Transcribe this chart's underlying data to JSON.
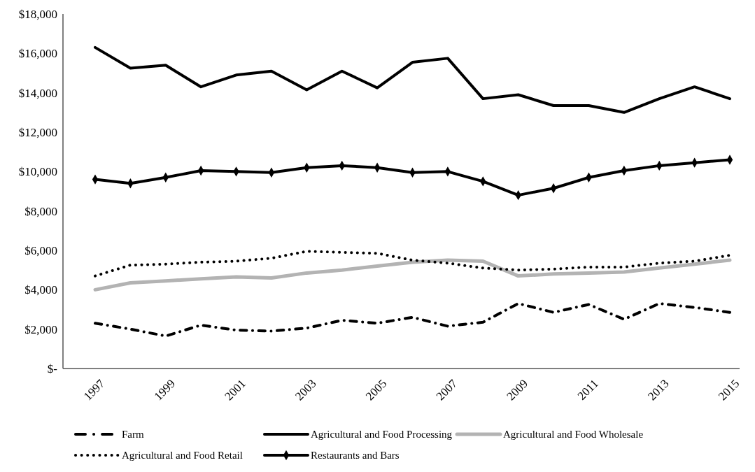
{
  "chart_data": {
    "type": "line",
    "categories": [
      "1997",
      null,
      "1999",
      null,
      "2001",
      null,
      "2003",
      null,
      "2005",
      null,
      "2007",
      null,
      "2009",
      null,
      "2011",
      null,
      "2013",
      null,
      "2015"
    ],
    "ylim": [
      0,
      18000
    ],
    "yticks": [
      {
        "value": 0,
        "label": "$-"
      },
      {
        "value": 2000,
        "label": "$2,000"
      },
      {
        "value": 4000,
        "label": "$4,000"
      },
      {
        "value": 6000,
        "label": "$6,000"
      },
      {
        "value": 8000,
        "label": "$8,000"
      },
      {
        "value": 10000,
        "label": "$10,000"
      },
      {
        "value": 12000,
        "label": "$12,000"
      },
      {
        "value": 14000,
        "label": "$14,000"
      },
      {
        "value": 16000,
        "label": "$16,000"
      },
      {
        "value": 18000,
        "label": "$18,000"
      }
    ],
    "grid": false,
    "legend": "bottom",
    "series": [
      {
        "name": "Farm",
        "color": "#000000",
        "line_style": "dashdot",
        "marker": "none",
        "values": [
          2300,
          2000,
          1650,
          2200,
          1950,
          1900,
          2050,
          2450,
          2300,
          2600,
          2150,
          2350,
          3300,
          2850,
          3250,
          2500,
          3300,
          3100,
          2850
        ]
      },
      {
        "name": "Agricultural and Food Processing",
        "color": "#000000",
        "line_style": "solid",
        "marker": "none",
        "values": [
          16300,
          15250,
          15400,
          14300,
          14900,
          15100,
          14150,
          15100,
          14250,
          15550,
          15750,
          13700,
          13900,
          13350,
          13350,
          13000,
          13700,
          14300,
          13700
        ]
      },
      {
        "name": "Agricultural and Food Wholesale",
        "color": "#b3b3b3",
        "line_style": "solid",
        "marker": "none",
        "values": [
          4000,
          4350,
          4450,
          4550,
          4650,
          4600,
          4850,
          5000,
          5200,
          5400,
          5500,
          5450,
          4700,
          4800,
          4850,
          4900,
          5100,
          5300,
          5500
        ]
      },
      {
        "name": "Agricultural and Food Retail",
        "color": "#000000",
        "line_style": "dotted",
        "marker": "none",
        "values": [
          4700,
          5250,
          5300,
          5400,
          5450,
          5600,
          5950,
          5900,
          5850,
          5500,
          5350,
          5100,
          5000,
          5050,
          5150,
          5150,
          5350,
          5450,
          5750
        ]
      },
      {
        "name": "Restaurants and Bars",
        "color": "#000000",
        "line_style": "solid",
        "marker": "diamond",
        "values": [
          9600,
          9400,
          9700,
          10050,
          10000,
          9950,
          10200,
          10300,
          10200,
          9950,
          10000,
          9500,
          8800,
          9150,
          9700,
          10050,
          10300,
          10450,
          10600
        ]
      }
    ]
  }
}
